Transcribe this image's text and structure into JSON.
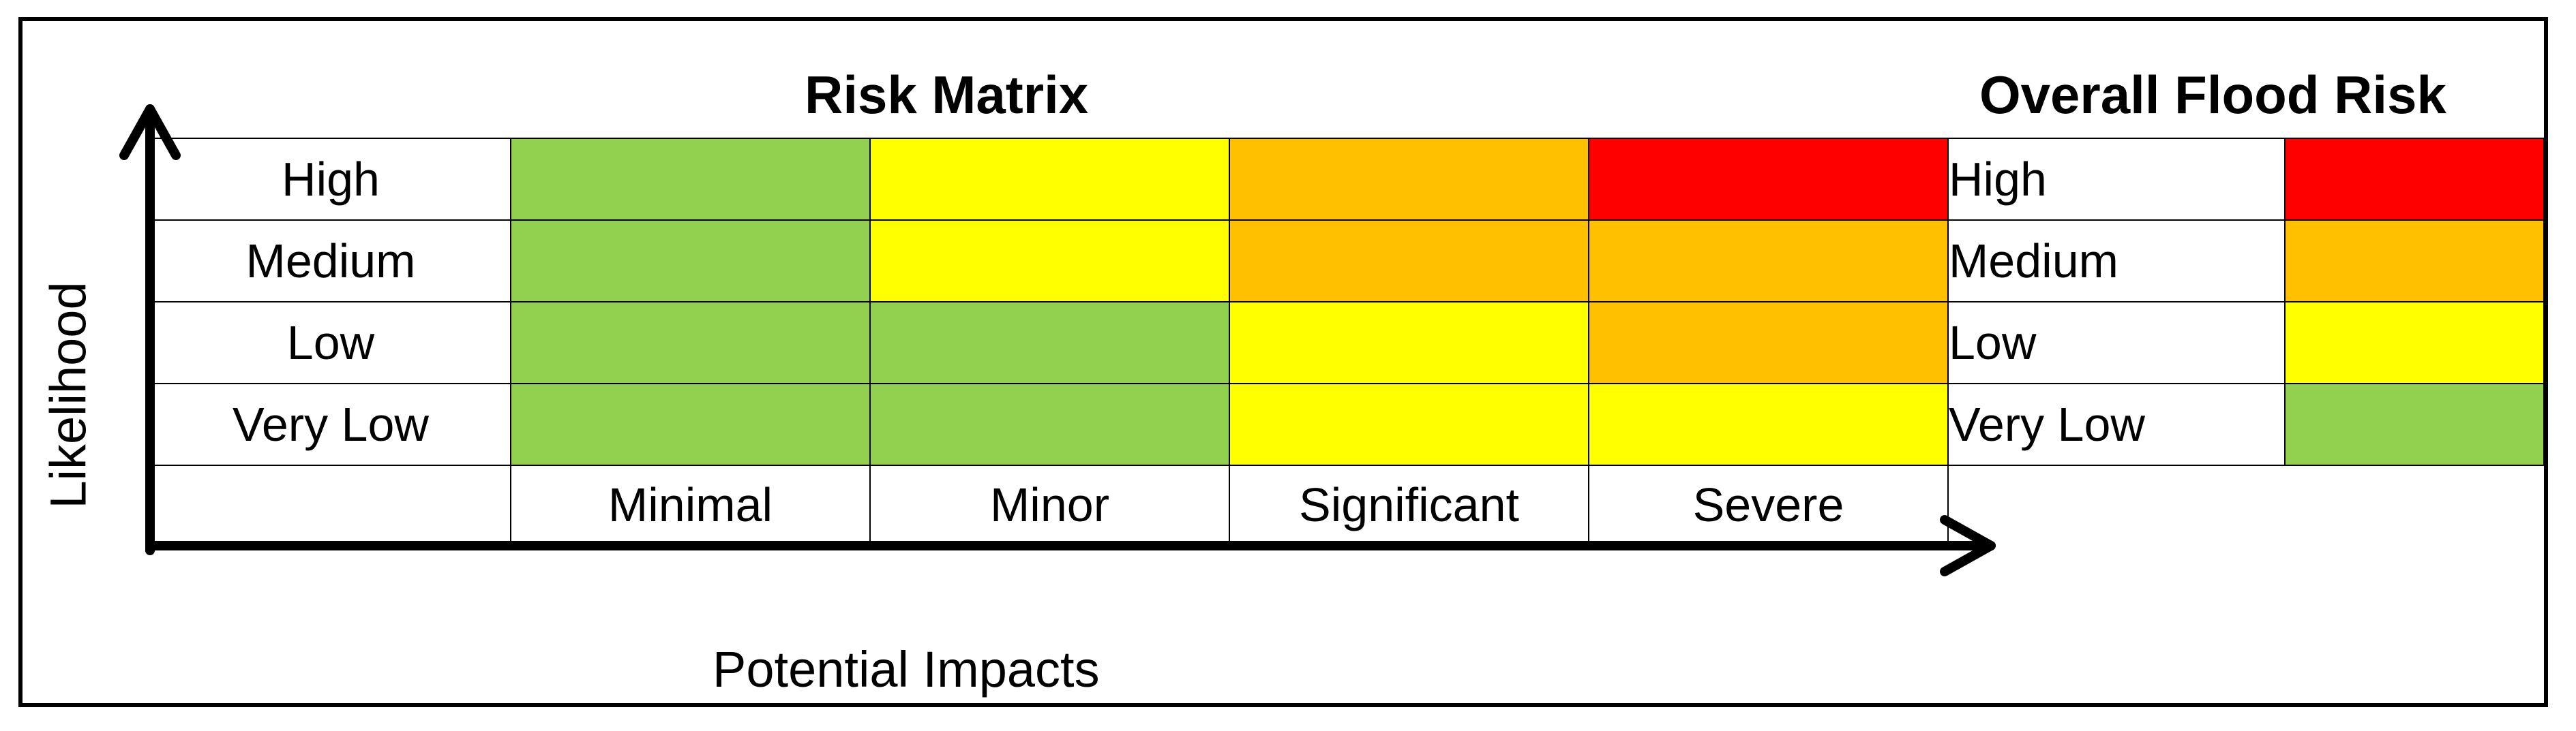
{
  "titles": {
    "matrix": "Risk Matrix",
    "overall": "Overall Flood Risk"
  },
  "axes": {
    "y_label": "Likelihood",
    "x_label": "Potential Impacts"
  },
  "colors": {
    "green": "#92d050",
    "yellow": "#ffff00",
    "orange": "#ffc000",
    "red": "#ff0000"
  },
  "matrix": {
    "likelihood_levels": [
      "High",
      "Medium",
      "Low",
      "Very Low"
    ],
    "impact_levels": [
      "Minimal",
      "Minor",
      "Significant",
      "Severe"
    ],
    "cells": [
      [
        "green",
        "yellow",
        "orange",
        "red"
      ],
      [
        "green",
        "yellow",
        "orange",
        "orange"
      ],
      [
        "green",
        "green",
        "yellow",
        "orange"
      ],
      [
        "green",
        "green",
        "yellow",
        "yellow"
      ]
    ]
  },
  "overall": {
    "levels": [
      {
        "label": "High",
        "color": "red"
      },
      {
        "label": "Medium",
        "color": "orange"
      },
      {
        "label": "Low",
        "color": "yellow"
      },
      {
        "label": "Very Low",
        "color": "green"
      }
    ]
  }
}
